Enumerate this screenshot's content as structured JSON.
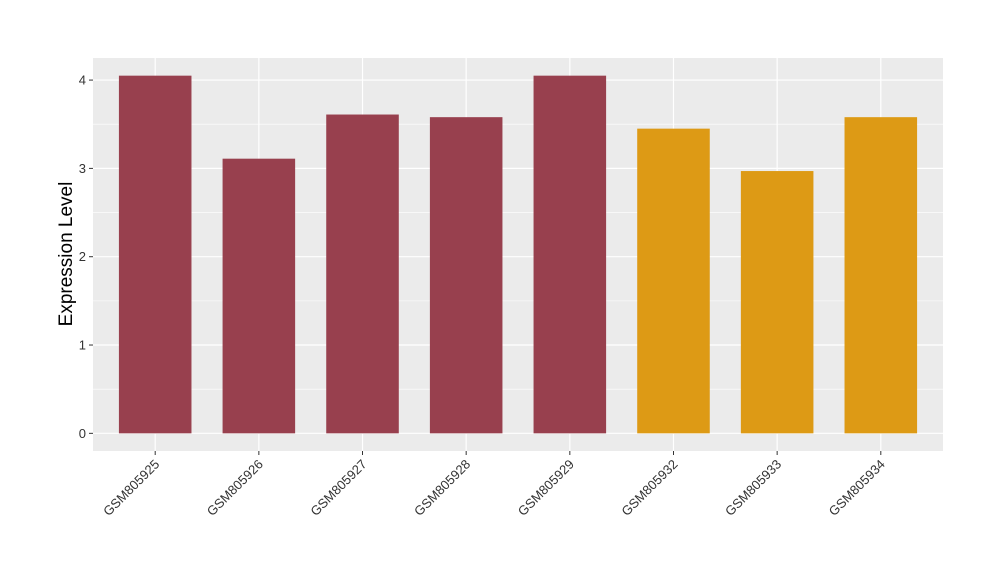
{
  "chart_data": {
    "type": "bar",
    "title": "",
    "xlabel": "",
    "ylabel": "Expression Level",
    "categories": [
      "GSM805925",
      "GSM805926",
      "GSM805927",
      "GSM805928",
      "GSM805929",
      "GSM805932",
      "GSM805933",
      "GSM805934"
    ],
    "values": [
      4.05,
      3.11,
      3.61,
      3.58,
      4.05,
      3.45,
      2.97,
      3.58
    ],
    "bar_colors": [
      "#98404e",
      "#98404e",
      "#98404e",
      "#98404e",
      "#98404e",
      "#dd9a15",
      "#dd9a15",
      "#dd9a15"
    ],
    "ylim": [
      -0.2,
      4.25
    ],
    "yticks": [
      0,
      1,
      2,
      3,
      4
    ],
    "grid": true,
    "panel_background": "#ebebeb",
    "gridline_color": "#ffffff",
    "x_tick_rotation": 45
  }
}
